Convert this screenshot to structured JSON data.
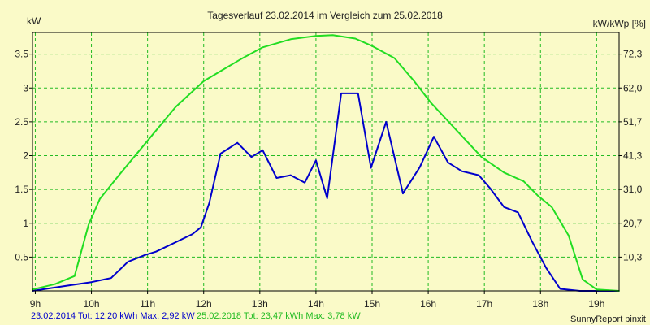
{
  "chart_data": {
    "type": "line",
    "title": "Tagesverlauf 23.02.2014 im Vergleich zum 25.02.2018",
    "ylabel_left": "kW",
    "ylabel_right": "kW/kWp [%]",
    "xlim": [
      8.95,
      19.4
    ],
    "ylim": [
      0,
      3.82
    ],
    "x_ticks": [
      {
        "x": 9,
        "label": "9h"
      },
      {
        "x": 10,
        "label": "10h"
      },
      {
        "x": 11,
        "label": "11h"
      },
      {
        "x": 12,
        "label": "12h"
      },
      {
        "x": 13,
        "label": "13h"
      },
      {
        "x": 14,
        "label": "14h"
      },
      {
        "x": 15,
        "label": "15h"
      },
      {
        "x": 16,
        "label": "16h"
      },
      {
        "x": 17,
        "label": "17h"
      },
      {
        "x": 18,
        "label": "18h"
      },
      {
        "x": 19,
        "label": "19h"
      }
    ],
    "y_ticks_left": [
      {
        "y": 0.5,
        "label": "0.5"
      },
      {
        "y": 1,
        "label": "1"
      },
      {
        "y": 1.5,
        "label": "1.5"
      },
      {
        "y": 2,
        "label": "2"
      },
      {
        "y": 2.5,
        "label": "2.5"
      },
      {
        "y": 3,
        "label": "3"
      },
      {
        "y": 3.5,
        "label": "3.5"
      }
    ],
    "y_ticks_right": [
      {
        "y": 0.5,
        "label": "10,3"
      },
      {
        "y": 1,
        "label": "20,7"
      },
      {
        "y": 1.5,
        "label": "31,0"
      },
      {
        "y": 2,
        "label": "41,3"
      },
      {
        "y": 2.5,
        "label": "51,7"
      },
      {
        "y": 3,
        "label": "62,0"
      },
      {
        "y": 3.5,
        "label": "72,3"
      }
    ],
    "grid": true,
    "series": [
      {
        "name": "23.02.2014",
        "color": "#0000cc",
        "points": [
          [
            8.95,
            0.0
          ],
          [
            9.6,
            0.08
          ],
          [
            10.0,
            0.13
          ],
          [
            10.35,
            0.19
          ],
          [
            10.65,
            0.43
          ],
          [
            10.95,
            0.53
          ],
          [
            11.15,
            0.58
          ],
          [
            11.5,
            0.72
          ],
          [
            11.8,
            0.84
          ],
          [
            11.95,
            0.94
          ],
          [
            12.1,
            1.3
          ],
          [
            12.3,
            2.03
          ],
          [
            12.6,
            2.19
          ],
          [
            12.85,
            1.98
          ],
          [
            13.05,
            2.08
          ],
          [
            13.3,
            1.67
          ],
          [
            13.55,
            1.71
          ],
          [
            13.8,
            1.6
          ],
          [
            14.0,
            1.93
          ],
          [
            14.2,
            1.37
          ],
          [
            14.45,
            2.92
          ],
          [
            14.75,
            2.92
          ],
          [
            14.98,
            1.82
          ],
          [
            15.25,
            2.5
          ],
          [
            15.55,
            1.44
          ],
          [
            15.85,
            1.83
          ],
          [
            16.1,
            2.28
          ],
          [
            16.35,
            1.9
          ],
          [
            16.6,
            1.77
          ],
          [
            16.9,
            1.71
          ],
          [
            17.1,
            1.52
          ],
          [
            17.35,
            1.24
          ],
          [
            17.6,
            1.16
          ],
          [
            17.85,
            0.73
          ],
          [
            18.1,
            0.34
          ],
          [
            18.35,
            0.03
          ],
          [
            18.7,
            0.0
          ],
          [
            19.4,
            0.0
          ]
        ]
      },
      {
        "name": "25.02.2018",
        "color": "#22dd22",
        "points": [
          [
            8.95,
            0.02
          ],
          [
            9.35,
            0.1
          ],
          [
            9.7,
            0.22
          ],
          [
            9.95,
            0.98
          ],
          [
            10.15,
            1.36
          ],
          [
            10.5,
            1.72
          ],
          [
            11.0,
            2.22
          ],
          [
            11.5,
            2.72
          ],
          [
            12.0,
            3.1
          ],
          [
            12.3,
            3.25
          ],
          [
            12.65,
            3.42
          ],
          [
            13.05,
            3.6
          ],
          [
            13.55,
            3.72
          ],
          [
            14.0,
            3.77
          ],
          [
            14.3,
            3.78
          ],
          [
            14.7,
            3.73
          ],
          [
            15.0,
            3.62
          ],
          [
            15.4,
            3.44
          ],
          [
            15.75,
            3.1
          ],
          [
            16.05,
            2.78
          ],
          [
            16.5,
            2.38
          ],
          [
            16.95,
            1.98
          ],
          [
            17.35,
            1.75
          ],
          [
            17.7,
            1.62
          ],
          [
            17.95,
            1.41
          ],
          [
            18.2,
            1.24
          ],
          [
            18.5,
            0.82
          ],
          [
            18.75,
            0.17
          ],
          [
            19.0,
            0.02
          ],
          [
            19.4,
            0.0
          ]
        ]
      }
    ]
  },
  "footer": {
    "series1_stats": "23.02.2014 Tot: 12,20 kWh Max: 2,92 kW",
    "series2_stats": "25.02.2018 Tot: 23,47 kWh Max: 3,78 kW",
    "source": "SunnyReport pinxit"
  },
  "colors": {
    "background": "#fafac8",
    "grid": "#22bb22",
    "axis": "#000000"
  }
}
